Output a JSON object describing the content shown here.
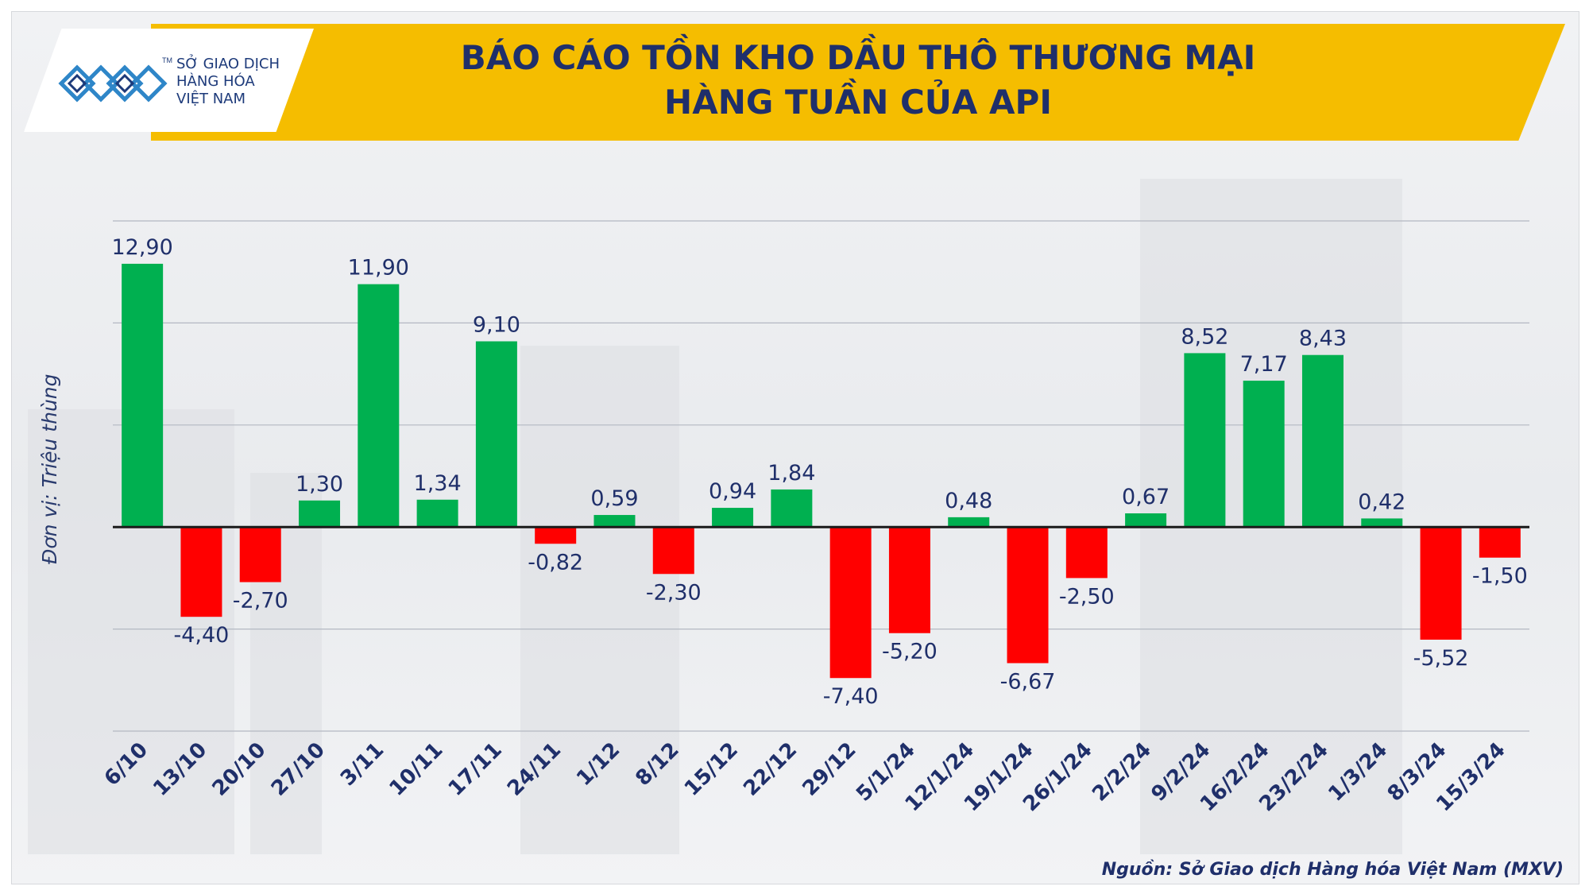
{
  "logo": {
    "line1": "SỞ GIAO DỊCH",
    "line2": "HÀNG HÓA",
    "line3": "VIỆT NAM",
    "tm": "TM"
  },
  "title": {
    "line1": "BÁO CÁO TỒN KHO DẦU THÔ THƯƠNG MẠI",
    "line2": "HÀNG TUẦN CỦA API"
  },
  "source": "Nguồn: Sở Giao dịch Hàng hóa Việt Nam (MXV)",
  "colors": {
    "positive": "#00b050",
    "negative": "#ff0000",
    "banner": "#f5bd00",
    "title": "#1f2f6a",
    "text": "#1f2f6a"
  },
  "chart_data": {
    "type": "bar",
    "ylabel": "Đơn vị: Triệu thùng",
    "xlabel": "",
    "ylim": [
      -10,
      15
    ],
    "grid": true,
    "legend": "none",
    "categories": [
      "6/10",
      "13/10",
      "20/10",
      "27/10",
      "3/11",
      "10/11",
      "17/11",
      "24/11",
      "1/12",
      "8/12",
      "15/12",
      "22/12",
      "29/12",
      "5/1/24",
      "12/1/24",
      "19/1/24",
      "26/1/24",
      "2/2/24",
      "9/2/24",
      "16/2/24",
      "23/2/24",
      "1/3/24",
      "8/3/24",
      "15/3/24"
    ],
    "values": [
      12.9,
      -4.4,
      -2.7,
      1.3,
      11.9,
      1.34,
      9.1,
      -0.82,
      0.59,
      -2.3,
      0.94,
      1.84,
      -7.4,
      -5.2,
      0.48,
      -6.67,
      -2.5,
      0.67,
      8.52,
      7.17,
      8.43,
      0.42,
      -5.52,
      -1.5
    ],
    "labels": [
      "12,90",
      "-4,40",
      "-2,70",
      "1,30",
      "11,90",
      "1,34",
      "9,10",
      "-0,82",
      "0,59",
      "-2,30",
      "0,94",
      "1,84",
      "-7,40",
      "-5,20",
      "0,48",
      "-6,67",
      "-2,50",
      "0,67",
      "8,52",
      "7,17",
      "8,43",
      "0,42",
      "-5,52",
      "-1,50"
    ]
  }
}
